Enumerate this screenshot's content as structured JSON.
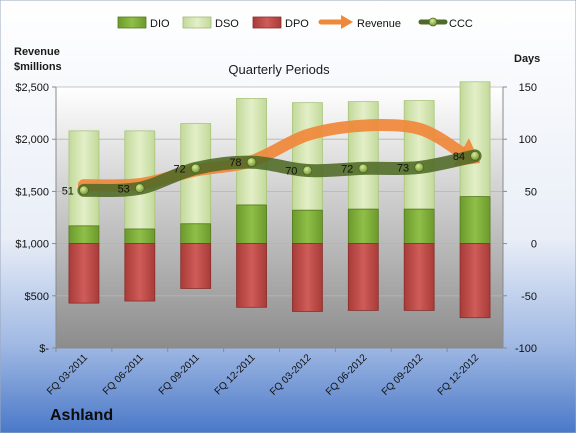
{
  "company": "Ashland",
  "left_axis_title_line1": "Revenue",
  "left_axis_title_line2": "$millions",
  "right_axis_title": "Days",
  "colors": {
    "dio_fill": "#7fae3c",
    "dso_fill": "#cfe3a6",
    "dpo_fill": "#c0504d",
    "revenue": "#f0883a",
    "ccc": "#4f6a26"
  },
  "chart_data": {
    "type": "bar",
    "title": "Quarterly Periods",
    "categories": [
      "FQ 03-2011",
      "FQ 06-2011",
      "FQ 09-2011",
      "FQ 12-2011",
      "FQ 03-2012",
      "FQ 06-2012",
      "FQ 09-2012",
      "FQ 12-2012"
    ],
    "left_ylim": [
      0,
      2500
    ],
    "left_ticks": [
      0,
      500,
      1000,
      1500,
      2000,
      2500
    ],
    "left_tick_labels": [
      "$-",
      "$500",
      "$1,000",
      "$1,500",
      "$2,000",
      "$2,500"
    ],
    "right_ylim": [
      -100,
      150
    ],
    "right_ticks": [
      -100,
      -50,
      0,
      50,
      100,
      150
    ],
    "right_tick_labels": [
      "-100",
      "-50",
      "0",
      "50",
      "100",
      "150"
    ],
    "legend_position": "top",
    "series": [
      {
        "name": "DIO",
        "axis": "right",
        "values": [
          17,
          14,
          19,
          37,
          32,
          33,
          33,
          45
        ]
      },
      {
        "name": "DSO",
        "axis": "right",
        "values": [
          91,
          94,
          96,
          102,
          103,
          103,
          104,
          110
        ]
      },
      {
        "name": "DPO",
        "axis": "right",
        "values": [
          -57,
          -55,
          -43,
          -61,
          -65,
          -64,
          -64,
          -71
        ]
      },
      {
        "name": "Revenue",
        "axis": "left",
        "values": [
          1560,
          1570,
          1700,
          1790,
          2040,
          2130,
          2100,
          1800
        ]
      },
      {
        "name": "CCC",
        "axis": "right",
        "values": [
          51,
          53,
          72,
          78,
          70,
          72,
          73,
          84
        ],
        "data_labels": [
          "51",
          "53",
          "72",
          "78",
          "70",
          "72",
          "73",
          "84"
        ]
      }
    ]
  }
}
